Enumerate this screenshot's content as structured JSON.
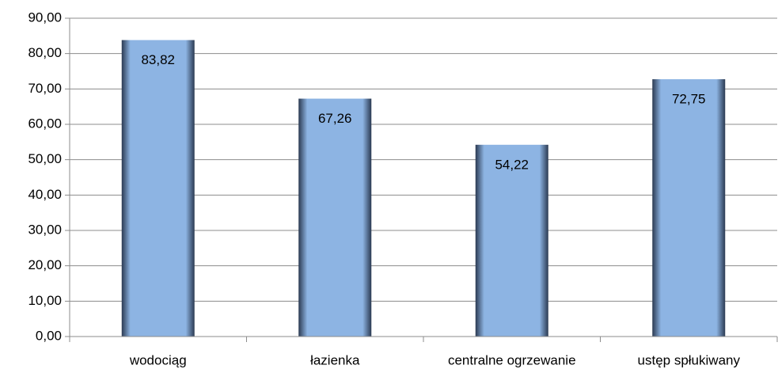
{
  "chart_data": {
    "type": "bar",
    "categories": [
      "wodociąg",
      "łazienka",
      "centralne ogrzewanie",
      "ustęp spłukiwany"
    ],
    "values": [
      83.82,
      67.26,
      54.22,
      72.75
    ],
    "value_labels": [
      "83,82",
      "67,26",
      "54,22",
      "72,75"
    ],
    "color": "#8db4e3",
    "ylim": [
      0,
      90
    ],
    "yticks": [
      {
        "value": 0,
        "label": "0,00"
      },
      {
        "value": 10,
        "label": "10,00"
      },
      {
        "value": 20,
        "label": "20,00"
      },
      {
        "value": 30,
        "label": "30,00"
      },
      {
        "value": 40,
        "label": "40,00"
      },
      {
        "value": 50,
        "label": "50,00"
      },
      {
        "value": 60,
        "label": "60,00"
      },
      {
        "value": 70,
        "label": "70,00"
      },
      {
        "value": 80,
        "label": "80,00"
      },
      {
        "value": 90,
        "label": "90,00"
      }
    ],
    "grid": true
  }
}
